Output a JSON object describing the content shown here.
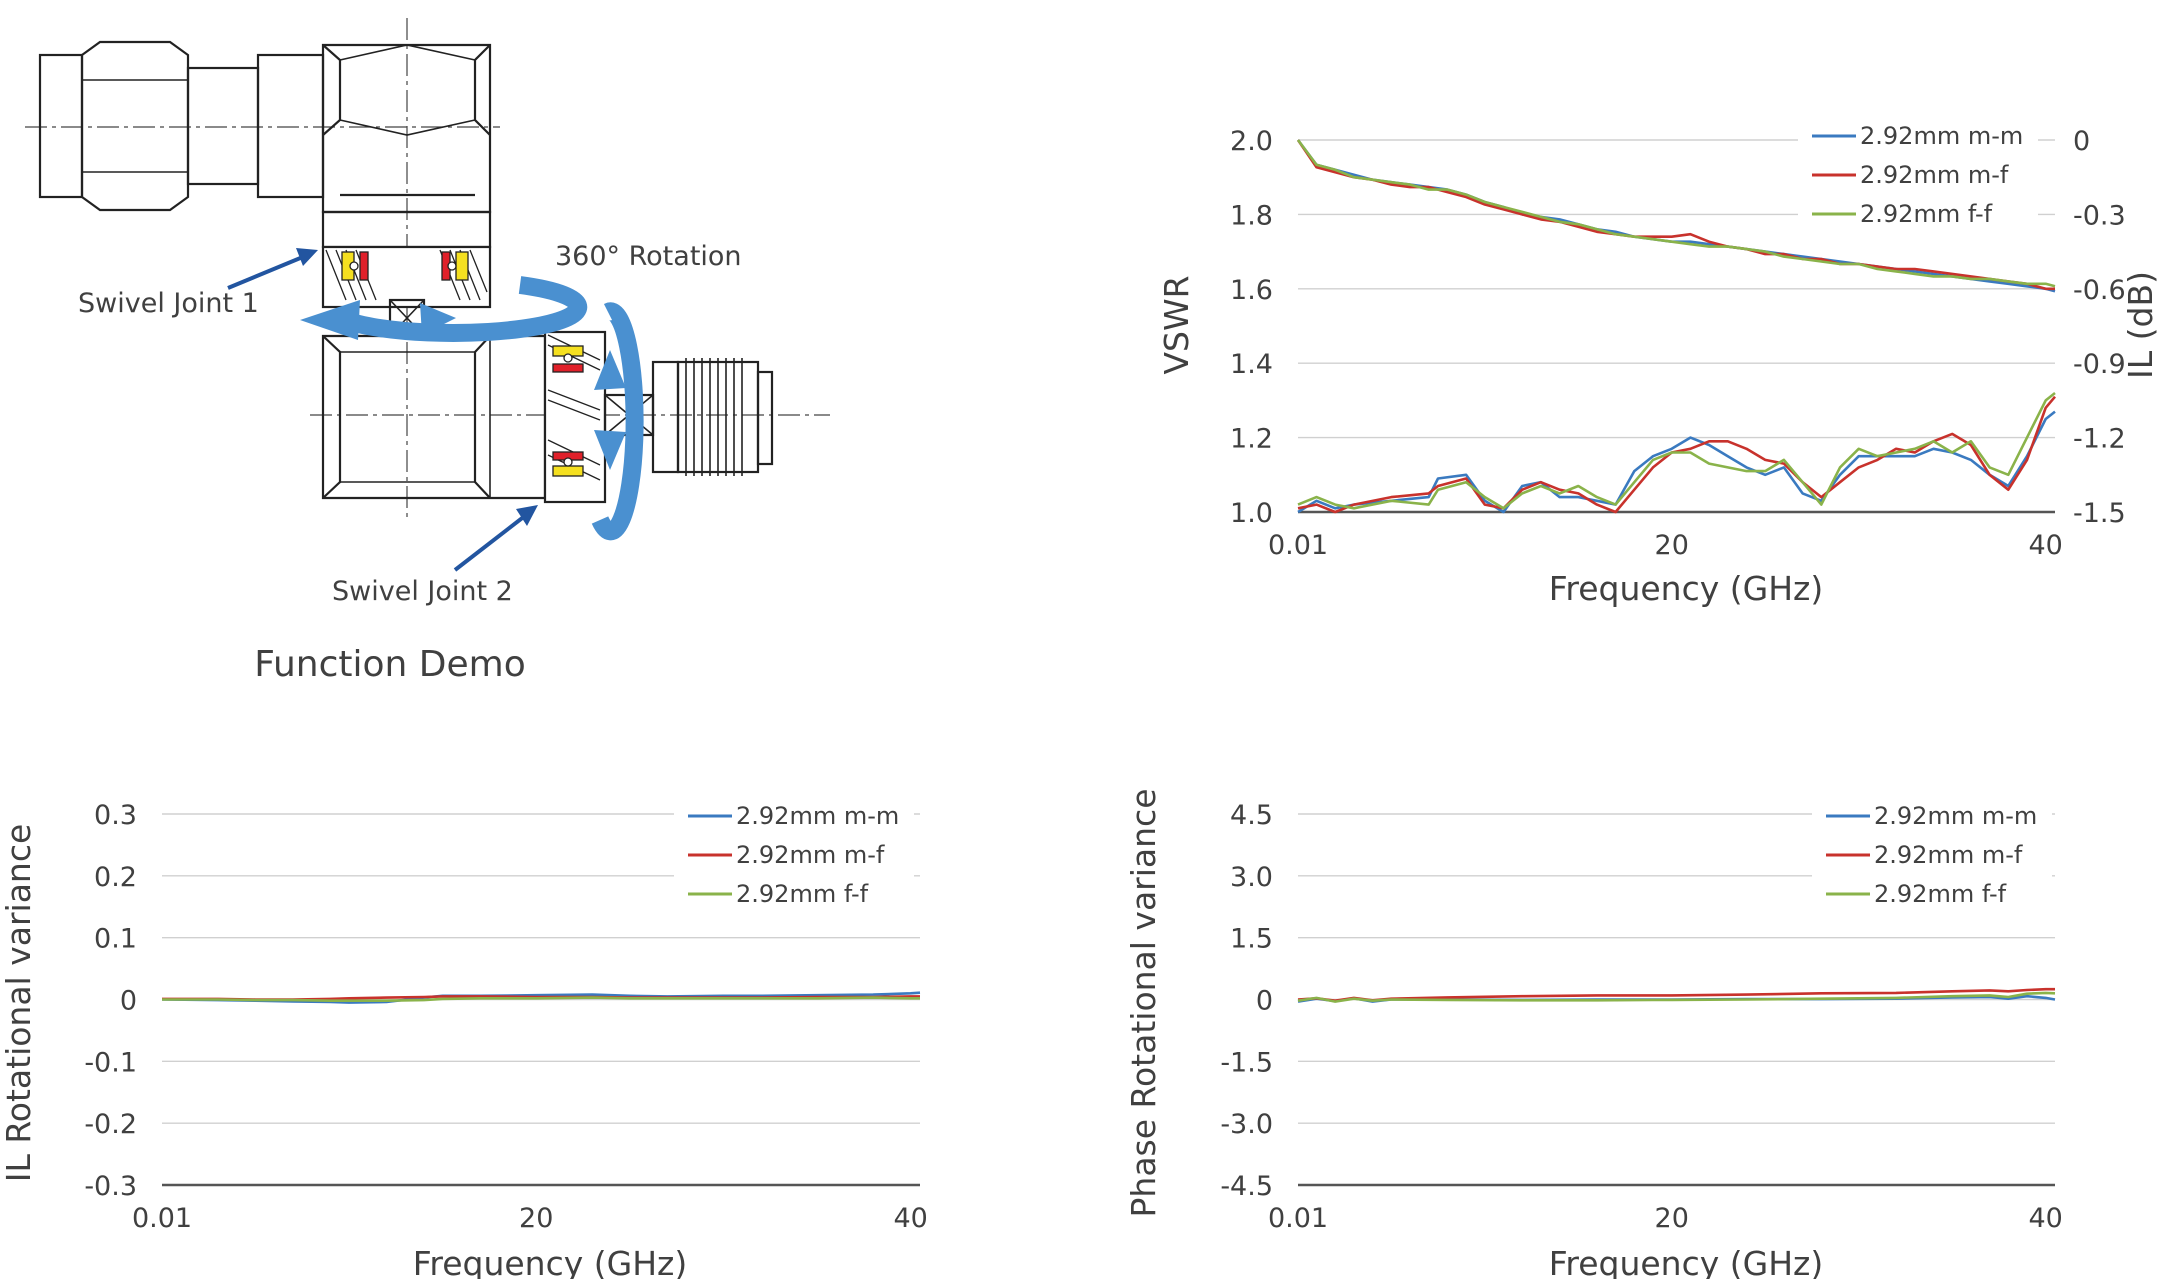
{
  "diagram": {
    "caption": "Function Demo",
    "rotation_label": "360° Rotation",
    "joint1_label": "Swivel Joint 1",
    "joint2_label": "Swivel Joint 2"
  },
  "colors": {
    "series_mm": "#3a7ac0",
    "series_mf": "#c8322c",
    "series_ff": "#8ab34a",
    "arrow_dark": "#2255a0",
    "arrow_light": "#4a90d0",
    "yellow": "#f5e020",
    "red": "#e0202a"
  },
  "chart_data": [
    {
      "type": "line",
      "xlabel": "Frequency (GHz)",
      "ylabel": "VSWR",
      "y2label": "IL (dB)",
      "xlim": [
        0.01,
        40.5
      ],
      "ylim": [
        1.0,
        2.0
      ],
      "y2lim": [
        -1.5,
        0
      ],
      "x_ticks": [
        "0.01",
        "20",
        "40"
      ],
      "y_ticks": [
        "1.0",
        "1.2",
        "1.4",
        "1.6",
        "1.8",
        "2.0"
      ],
      "y2_ticks": [
        "-1.5",
        "-1.2",
        "-0.9",
        "-0.6",
        "-0.3",
        "0"
      ],
      "legend": [
        "2.92mm m-m",
        "2.92mm m-f",
        "2.92mm f-f"
      ],
      "legend_position": "top-right",
      "grid": true,
      "series": [
        {
          "name": "2.92mm m-m",
          "axis": "y",
          "x": [
            0.01,
            1,
            2,
            3,
            5,
            7,
            7.5,
            9,
            10,
            11,
            12,
            13,
            14,
            15,
            16,
            17,
            18,
            19,
            20,
            21,
            22,
            23,
            24,
            25,
            26,
            27,
            28,
            29,
            30,
            31,
            32,
            33,
            34,
            35,
            36,
            37,
            38,
            39,
            40,
            40.5
          ],
          "y": [
            1.0,
            1.03,
            1.01,
            1.02,
            1.03,
            1.04,
            1.09,
            1.1,
            1.03,
            1.0,
            1.07,
            1.08,
            1.04,
            1.04,
            1.03,
            1.02,
            1.11,
            1.15,
            1.17,
            1.2,
            1.18,
            1.15,
            1.12,
            1.1,
            1.12,
            1.05,
            1.03,
            1.1,
            1.15,
            1.15,
            1.15,
            1.15,
            1.17,
            1.16,
            1.14,
            1.1,
            1.07,
            1.15,
            1.25,
            1.27
          ]
        },
        {
          "name": "2.92mm m-f",
          "axis": "y",
          "x": [
            0.01,
            1,
            2,
            3,
            5,
            7,
            7.5,
            9,
            10,
            11,
            12,
            13,
            14,
            15,
            16,
            17,
            18,
            19,
            20,
            21,
            22,
            23,
            24,
            25,
            26,
            27,
            28,
            29,
            30,
            31,
            32,
            33,
            34,
            35,
            36,
            37,
            38,
            39,
            40,
            40.5
          ],
          "y": [
            1.01,
            1.02,
            1.0,
            1.02,
            1.04,
            1.05,
            1.07,
            1.09,
            1.02,
            1.01,
            1.06,
            1.08,
            1.06,
            1.05,
            1.02,
            1.0,
            1.06,
            1.12,
            1.16,
            1.17,
            1.19,
            1.19,
            1.17,
            1.14,
            1.13,
            1.08,
            1.04,
            1.08,
            1.12,
            1.14,
            1.17,
            1.16,
            1.19,
            1.21,
            1.18,
            1.1,
            1.06,
            1.14,
            1.28,
            1.31
          ]
        },
        {
          "name": "2.92mm f-f",
          "axis": "y",
          "x": [
            0.01,
            1,
            2,
            3,
            5,
            7,
            7.5,
            9,
            10,
            11,
            12,
            13,
            14,
            15,
            16,
            17,
            18,
            19,
            20,
            21,
            22,
            23,
            24,
            25,
            26,
            27,
            28,
            29,
            30,
            31,
            32,
            33,
            34,
            35,
            36,
            37,
            38,
            39,
            40,
            40.5
          ],
          "y": [
            1.02,
            1.04,
            1.02,
            1.01,
            1.03,
            1.02,
            1.06,
            1.08,
            1.04,
            1.01,
            1.05,
            1.07,
            1.05,
            1.07,
            1.04,
            1.02,
            1.08,
            1.14,
            1.16,
            1.16,
            1.13,
            1.12,
            1.11,
            1.11,
            1.14,
            1.08,
            1.02,
            1.12,
            1.17,
            1.15,
            1.16,
            1.17,
            1.19,
            1.16,
            1.19,
            1.12,
            1.1,
            1.2,
            1.3,
            1.32
          ]
        },
        {
          "name": "2.92mm m-m",
          "axis": "y2",
          "x": [
            0.01,
            1,
            2,
            3,
            4,
            5,
            6,
            7,
            8,
            9,
            10,
            11,
            12,
            13,
            14,
            15,
            16,
            17,
            18,
            19,
            20,
            21,
            22,
            23,
            24,
            25,
            26,
            27,
            28,
            29,
            30,
            31,
            32,
            33,
            34,
            35,
            36,
            37,
            38,
            39,
            40,
            40.5
          ],
          "y": [
            0,
            -0.1,
            -0.12,
            -0.14,
            -0.16,
            -0.17,
            -0.18,
            -0.19,
            -0.2,
            -0.22,
            -0.25,
            -0.27,
            -0.3,
            -0.31,
            -0.32,
            -0.34,
            -0.36,
            -0.37,
            -0.39,
            -0.4,
            -0.41,
            -0.41,
            -0.42,
            -0.43,
            -0.44,
            -0.45,
            -0.46,
            -0.47,
            -0.48,
            -0.49,
            -0.5,
            -0.51,
            -0.52,
            -0.53,
            -0.54,
            -0.55,
            -0.56,
            -0.57,
            -0.58,
            -0.59,
            -0.6,
            -0.61
          ]
        },
        {
          "name": "2.92mm m-f",
          "axis": "y2",
          "x": [
            0.01,
            1,
            2,
            3,
            4,
            5,
            6,
            7,
            8,
            9,
            10,
            11,
            12,
            13,
            14,
            15,
            16,
            17,
            18,
            19,
            20,
            21,
            22,
            23,
            24,
            25,
            26,
            27,
            28,
            29,
            30,
            31,
            32,
            33,
            34,
            35,
            36,
            37,
            38,
            39,
            40,
            40.5
          ],
          "y": [
            0,
            -0.11,
            -0.13,
            -0.15,
            -0.16,
            -0.18,
            -0.19,
            -0.19,
            -0.21,
            -0.23,
            -0.26,
            -0.28,
            -0.3,
            -0.32,
            -0.33,
            -0.35,
            -0.37,
            -0.38,
            -0.39,
            -0.39,
            -0.39,
            -0.38,
            -0.41,
            -0.43,
            -0.44,
            -0.46,
            -0.46,
            -0.48,
            -0.48,
            -0.5,
            -0.5,
            -0.51,
            -0.52,
            -0.52,
            -0.53,
            -0.54,
            -0.55,
            -0.56,
            -0.57,
            -0.58,
            -0.6,
            -0.6
          ]
        },
        {
          "name": "2.92mm f-f",
          "axis": "y2",
          "x": [
            0.01,
            1,
            2,
            3,
            4,
            5,
            6,
            7,
            8,
            9,
            10,
            11,
            12,
            13,
            14,
            15,
            16,
            17,
            18,
            19,
            20,
            21,
            22,
            23,
            24,
            25,
            26,
            27,
            28,
            29,
            30,
            31,
            32,
            33,
            34,
            35,
            36,
            37,
            38,
            39,
            40,
            40.5
          ],
          "y": [
            0,
            -0.1,
            -0.12,
            -0.15,
            -0.16,
            -0.17,
            -0.18,
            -0.2,
            -0.2,
            -0.22,
            -0.25,
            -0.27,
            -0.29,
            -0.31,
            -0.33,
            -0.34,
            -0.36,
            -0.38,
            -0.39,
            -0.4,
            -0.41,
            -0.42,
            -0.43,
            -0.43,
            -0.44,
            -0.45,
            -0.47,
            -0.48,
            -0.49,
            -0.5,
            -0.5,
            -0.52,
            -0.53,
            -0.54,
            -0.55,
            -0.55,
            -0.56,
            -0.56,
            -0.57,
            -0.58,
            -0.58,
            -0.59
          ]
        }
      ]
    },
    {
      "type": "line",
      "xlabel": "Frequency (GHz)",
      "ylabel": "IL Rotational variance",
      "xlim": [
        0.01,
        40.5
      ],
      "ylim": [
        -0.3,
        0.3
      ],
      "x_ticks": [
        "0.01",
        "20",
        "40"
      ],
      "y_ticks": [
        "-0.3",
        "-0.2",
        "-0.1",
        "0",
        "0.1",
        "0.2",
        "0.3"
      ],
      "legend": [
        "2.92mm m-m",
        "2.92mm m-f",
        "2.92mm f-f"
      ],
      "legend_position": "top-right",
      "grid": true,
      "series": [
        {
          "name": "2.92mm m-m",
          "x": [
            0.01,
            3,
            5,
            7,
            9,
            10,
            12,
            14,
            15,
            17,
            20,
            23,
            25,
            27,
            30,
            32,
            35,
            38,
            40,
            40.5
          ],
          "y": [
            0,
            -0.001,
            -0.002,
            -0.003,
            -0.004,
            -0.005,
            -0.004,
            0.003,
            0.006,
            0.006,
            0.007,
            0.008,
            0.006,
            0.005,
            0.006,
            0.006,
            0.007,
            0.008,
            0.01,
            0.011
          ]
        },
        {
          "name": "2.92mm m-f",
          "x": [
            0.01,
            3,
            5,
            7,
            9,
            10,
            12,
            14,
            15,
            17,
            20,
            23,
            25,
            27,
            30,
            32,
            35,
            38,
            40,
            40.5
          ],
          "y": [
            0.001,
            0.001,
            0,
            0,
            0.001,
            0.002,
            0.003,
            0.004,
            0.005,
            0.005,
            0.004,
            0.004,
            0.003,
            0.003,
            0.003,
            0.003,
            0.004,
            0.004,
            0.005,
            0.005
          ]
        },
        {
          "name": "2.92mm f-f",
          "x": [
            0.01,
            3,
            5,
            7,
            9,
            10,
            12,
            14,
            15,
            17,
            20,
            23,
            25,
            27,
            30,
            32,
            35,
            38,
            40,
            40.5
          ],
          "y": [
            0,
            0,
            -0.001,
            -0.001,
            -0.002,
            -0.002,
            -0.002,
            -0.001,
            0.001,
            0.002,
            0.002,
            0.003,
            0.002,
            0.002,
            0.002,
            0.002,
            0.002,
            0.003,
            0.002,
            0.002
          ]
        }
      ]
    },
    {
      "type": "line",
      "xlabel": "Frequency (GHz)",
      "ylabel": "Phase Rotational variance",
      "xlim": [
        0.01,
        40.5
      ],
      "ylim": [
        -4.5,
        4.5
      ],
      "x_ticks": [
        "0.01",
        "20",
        "40"
      ],
      "y_ticks": [
        "-4.5",
        "-3.0",
        "-1.5",
        "0",
        "1.5",
        "3.0",
        "4.5"
      ],
      "legend": [
        "2.92mm m-m",
        "2.92mm m-f",
        "2.92mm f-f"
      ],
      "legend_position": "top-right",
      "grid": true,
      "series": [
        {
          "name": "2.92mm m-m",
          "x": [
            0.01,
            1,
            2,
            3,
            4,
            5,
            8,
            12,
            16,
            20,
            24,
            28,
            32,
            35,
            37,
            38,
            39,
            40,
            40.5
          ],
          "y": [
            -0.05,
            0.02,
            -0.04,
            0.03,
            -0.05,
            0,
            0,
            -0.01,
            0,
            0,
            0.01,
            0.01,
            0.02,
            0.05,
            0.06,
            0.02,
            0.08,
            0.04,
            0.0
          ]
        },
        {
          "name": "2.92mm m-f",
          "x": [
            0.01,
            1,
            2,
            3,
            4,
            5,
            8,
            12,
            16,
            20,
            24,
            28,
            32,
            35,
            37,
            38,
            39,
            40,
            40.5
          ],
          "y": [
            0,
            0.03,
            -0.03,
            0.04,
            -0.02,
            0.02,
            0.05,
            0.08,
            0.1,
            0.1,
            0.12,
            0.15,
            0.16,
            0.2,
            0.22,
            0.2,
            0.23,
            0.25,
            0.25
          ]
        },
        {
          "name": "2.92mm f-f",
          "x": [
            0.01,
            1,
            2,
            3,
            4,
            5,
            8,
            12,
            16,
            20,
            24,
            28,
            32,
            35,
            37,
            38,
            39,
            40,
            40.5
          ],
          "y": [
            -0.03,
            0.04,
            -0.05,
            0.02,
            -0.03,
            0,
            -0.01,
            -0.02,
            -0.02,
            -0.01,
            0,
            0.02,
            0.04,
            0.08,
            0.1,
            0.06,
            0.14,
            0.16,
            0.15
          ]
        }
      ]
    }
  ]
}
